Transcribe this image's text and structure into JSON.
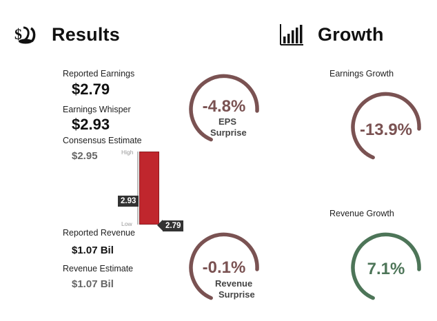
{
  "results": {
    "title": "Results",
    "icon": "money-hand-icon",
    "reported_earnings": {
      "label": "Reported Earnings",
      "value": "$2.79"
    },
    "earnings_whisper": {
      "label": "Earnings Whisper",
      "value": "$2.93"
    },
    "consensus_estimate": {
      "label": "Consensus Estimate",
      "value": "$2.95"
    },
    "reported_revenue": {
      "label": "Reported Revenue",
      "value": "$1.07 Bil"
    },
    "revenue_estimate": {
      "label": "Revenue Estimate",
      "value": "$1.07 Bil"
    },
    "eps_gauge": {
      "percent": "-4.8%",
      "line1": "EPS",
      "line2": "Surprise",
      "color": "#7a5252"
    },
    "revenue_gauge": {
      "percent": "-0.1%",
      "line1": "Revenue",
      "line2": "Surprise",
      "color": "#7a5252"
    },
    "range_bar": {
      "high_label": "High",
      "low_label": "Low",
      "whisper_tag": "2.93",
      "reported_tag": "2.79",
      "bar_color": "#c0262d"
    }
  },
  "growth": {
    "title": "Growth",
    "icon": "bar-chart-icon",
    "earnings_growth": {
      "label": "Earnings Growth",
      "percent": "-13.9%",
      "color": "#7a5252"
    },
    "revenue_growth": {
      "label": "Revenue Growth",
      "percent": "7.1%",
      "color": "#4d7558"
    }
  }
}
